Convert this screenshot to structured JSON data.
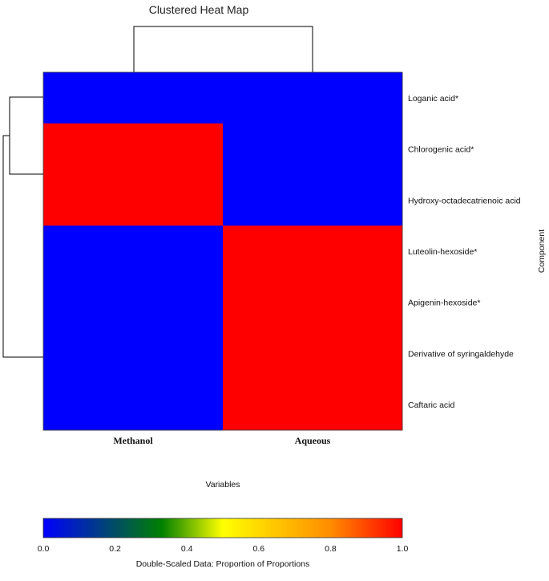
{
  "chart_data": {
    "type": "heatmap",
    "title": "Clustered Heat Map",
    "xlabel": "Variables",
    "ylabel": "Component",
    "columns": [
      "Methanol",
      "Aqueous"
    ],
    "rows": [
      "Loganic acid*",
      "Chlorogenic acid*",
      "Hydroxy-octadecatrienoic acid",
      "Luteolin-hexoside*",
      "Apigenin-hexoside*",
      "Derivative of syringaldehyde",
      "Caftaric acid"
    ],
    "values": [
      [
        0.0,
        0.0
      ],
      [
        1.0,
        0.0
      ],
      [
        1.0,
        0.0
      ],
      [
        0.0,
        1.0
      ],
      [
        0.0,
        1.0
      ],
      [
        0.0,
        1.0
      ],
      [
        0.0,
        1.0
      ]
    ],
    "row_block_rows": [
      {
        "rows": [
          0
        ]
      },
      {
        "rows": [
          1,
          2
        ]
      },
      {
        "rows": [
          3,
          4,
          5,
          6
        ]
      }
    ],
    "colorbar": {
      "label": "Double-Scaled Data: Proportion of Proportions",
      "range": [
        0.0,
        1.0
      ],
      "ticks": [
        "0.0",
        "0.2",
        "0.4",
        "0.6",
        "0.8",
        "1.0"
      ],
      "stops": [
        "#0000ff",
        "#008000",
        "#ffff00",
        "#ff0000"
      ]
    },
    "low_color": "#0000ff",
    "high_color": "#ff0000"
  }
}
